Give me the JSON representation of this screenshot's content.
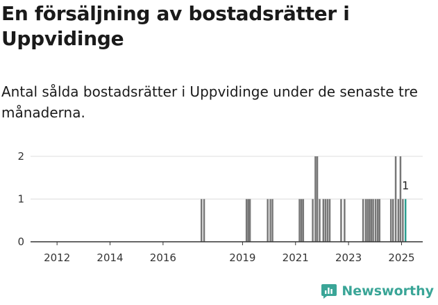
{
  "title": "En försäljning av bostadsrätter i Uppvidinge",
  "subtitle": "Antal sålda bostadsrätter i Uppvidinge under de senaste tre månaderna.",
  "brand": {
    "name": "Newsworthy",
    "icon": "newsworthy-logo-icon",
    "color": "#3aa597"
  },
  "colors": {
    "bar": "#777777",
    "highlight": "#2a9d8f",
    "grid": "#dddddd",
    "axis": "#333333"
  },
  "chart_data": {
    "type": "bar",
    "title": "Antal sålda bostadsrätter i Uppvidinge",
    "xlabel": "",
    "ylabel": "",
    "xlim": [
      2011.0,
      2025.8
    ],
    "ylim": [
      0,
      2
    ],
    "yticks": [
      0,
      1,
      2
    ],
    "xticks": [
      "2012",
      "2014",
      "2016",
      "2019",
      "2021",
      "2023",
      "2025"
    ],
    "xtick_positions": [
      2012,
      2014,
      2016,
      2019,
      2021,
      2023,
      2025
    ],
    "bar_width_years": 0.065,
    "highlight": {
      "x": 2025.15,
      "value": 1,
      "label": "1"
    },
    "points": [
      {
        "x": 2017.45,
        "value": 1
      },
      {
        "x": 2017.55,
        "value": 1
      },
      {
        "x": 2019.15,
        "value": 1
      },
      {
        "x": 2019.22,
        "value": 1
      },
      {
        "x": 2019.28,
        "value": 1
      },
      {
        "x": 2019.95,
        "value": 1
      },
      {
        "x": 2020.05,
        "value": 1
      },
      {
        "x": 2020.13,
        "value": 1
      },
      {
        "x": 2021.15,
        "value": 1
      },
      {
        "x": 2021.22,
        "value": 1
      },
      {
        "x": 2021.29,
        "value": 1
      },
      {
        "x": 2021.65,
        "value": 1
      },
      {
        "x": 2021.75,
        "value": 2
      },
      {
        "x": 2021.82,
        "value": 2
      },
      {
        "x": 2021.91,
        "value": 1
      },
      {
        "x": 2022.05,
        "value": 1
      },
      {
        "x": 2022.13,
        "value": 1
      },
      {
        "x": 2022.21,
        "value": 1
      },
      {
        "x": 2022.29,
        "value": 1
      },
      {
        "x": 2022.72,
        "value": 1
      },
      {
        "x": 2022.85,
        "value": 1
      },
      {
        "x": 2023.55,
        "value": 1
      },
      {
        "x": 2023.65,
        "value": 1
      },
      {
        "x": 2023.72,
        "value": 1
      },
      {
        "x": 2023.79,
        "value": 1
      },
      {
        "x": 2023.86,
        "value": 1
      },
      {
        "x": 2023.93,
        "value": 1
      },
      {
        "x": 2024.02,
        "value": 1
      },
      {
        "x": 2024.1,
        "value": 1
      },
      {
        "x": 2024.17,
        "value": 1
      },
      {
        "x": 2024.6,
        "value": 1
      },
      {
        "x": 2024.68,
        "value": 1
      },
      {
        "x": 2024.78,
        "value": 2
      },
      {
        "x": 2024.88,
        "value": 1
      },
      {
        "x": 2024.96,
        "value": 2
      },
      {
        "x": 2025.05,
        "value": 1
      },
      {
        "x": 2025.15,
        "value": 1
      }
    ]
  }
}
